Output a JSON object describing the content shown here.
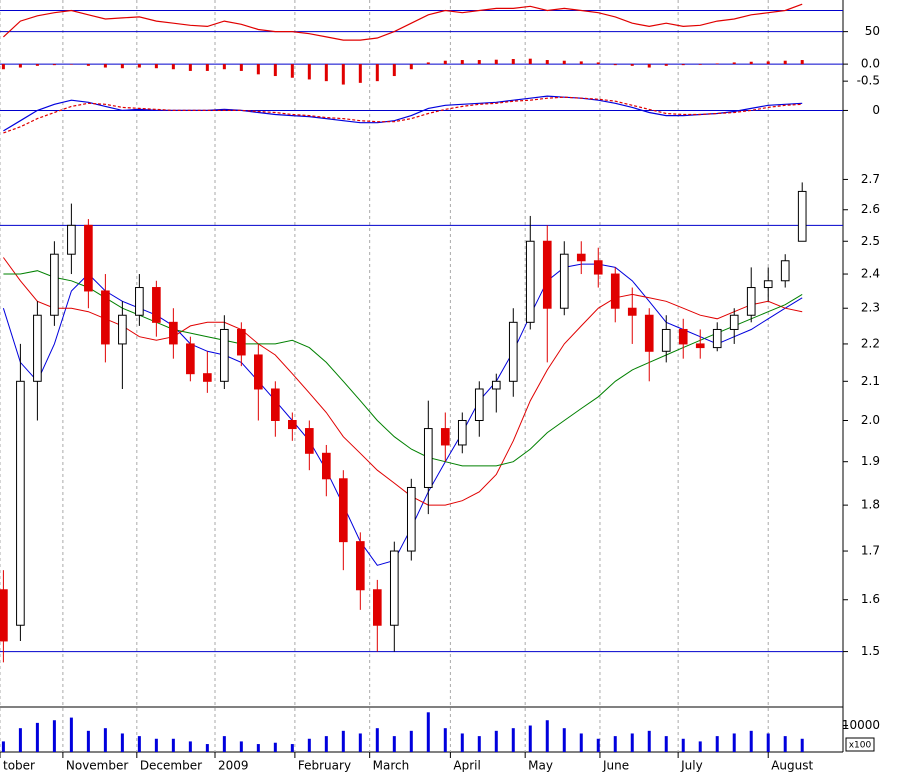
{
  "chart_data": [
    {
      "type": "line",
      "xlim": [
        -0.2,
        49.4
      ],
      "ylim": [
        25,
        80
      ],
      "yticks": [
        50
      ],
      "levels": [
        70,
        50
      ],
      "series": [
        {
          "color": "#e00000",
          "values": [
            45,
            60,
            65,
            68,
            70,
            66,
            62,
            63,
            64,
            60,
            58,
            56,
            55,
            60,
            57,
            52,
            50,
            50,
            48,
            45,
            42,
            42,
            44,
            50,
            58,
            66,
            70,
            68,
            70,
            72,
            72,
            74,
            70,
            72,
            70,
            68,
            64,
            58,
            55,
            58,
            55,
            56,
            60,
            62,
            66,
            68,
            70,
            76
          ]
        }
      ]
    },
    {
      "type": "bar",
      "xlim": [
        -0.2,
        49.4
      ],
      "ylim": [
        -0.76,
        0.18
      ],
      "yticks": [
        {
          "value": 0,
          "label": "0.0"
        },
        -0.5
      ],
      "levels": [
        0
      ],
      "color": "#e00000",
      "values": [
        -0.15,
        -0.1,
        -0.05,
        -0.03,
        0.0,
        -0.05,
        -0.1,
        -0.12,
        -0.1,
        -0.12,
        -0.15,
        -0.2,
        -0.2,
        -0.15,
        -0.2,
        -0.3,
        -0.35,
        -0.4,
        -0.45,
        -0.5,
        -0.6,
        -0.55,
        -0.5,
        -0.35,
        -0.15,
        0.05,
        0.1,
        0.12,
        0.12,
        0.13,
        0.15,
        0.16,
        0.12,
        0.1,
        0.08,
        0.05,
        -0.03,
        -0.05,
        -0.1,
        -0.05,
        -0.03,
        -0.02,
        0.02,
        0.05,
        0.07,
        0.08,
        0.1,
        0.12
      ]
    },
    {
      "type": "line",
      "xlim": [
        -0.2,
        49.4
      ],
      "ylim": [
        -0.25,
        0.2
      ],
      "yticks": [
        0
      ],
      "levels": [
        0
      ],
      "series": [
        {
          "color": "#0000dd",
          "values": [
            -0.2,
            -0.1,
            0.0,
            0.06,
            0.1,
            0.08,
            0.04,
            0.0,
            0.01,
            0.0,
            0.0,
            0.0,
            0.0,
            0.01,
            0.0,
            -0.02,
            -0.04,
            -0.05,
            -0.06,
            -0.08,
            -0.1,
            -0.12,
            -0.12,
            -0.1,
            -0.05,
            0.02,
            0.05,
            0.06,
            0.07,
            0.08,
            0.1,
            0.12,
            0.14,
            0.13,
            0.12,
            0.1,
            0.07,
            0.03,
            -0.02,
            -0.05,
            -0.05,
            -0.04,
            -0.03,
            -0.01,
            0.02,
            0.05,
            0.06,
            0.07
          ]
        },
        {
          "color": "#e00000",
          "dashed": true,
          "values": [
            -0.22,
            -0.16,
            -0.08,
            -0.02,
            0.04,
            0.07,
            0.06,
            0.03,
            0.02,
            0.01,
            0.0,
            0.0,
            0.0,
            0.0,
            0.0,
            -0.01,
            -0.02,
            -0.04,
            -0.05,
            -0.07,
            -0.08,
            -0.1,
            -0.11,
            -0.11,
            -0.08,
            -0.03,
            0.01,
            0.04,
            0.06,
            0.07,
            0.09,
            0.1,
            0.12,
            0.13,
            0.12,
            0.11,
            0.09,
            0.05,
            0.01,
            -0.03,
            -0.04,
            -0.04,
            -0.03,
            -0.02,
            0.0,
            0.03,
            0.05,
            0.06
          ]
        }
      ]
    },
    {
      "type": "candlestick",
      "xlim": [
        -0.2,
        49.4
      ],
      "ylim": [
        1.4,
        2.85
      ],
      "log_scale": true,
      "up_color": "#000000",
      "down_color": "#e00000",
      "yticks": [
        1.5,
        1.6,
        1.7,
        1.8,
        1.9,
        {
          "value": 2,
          "label": "2.0"
        },
        2.1,
        2.2,
        2.3,
        2.4,
        2.5,
        2.6,
        2.7
      ],
      "levels": [
        2.55,
        1.5
      ],
      "open": [
        1.62,
        1.55,
        2.1,
        2.28,
        2.46,
        2.55,
        2.35,
        2.2,
        2.28,
        2.36,
        2.26,
        2.2,
        2.12,
        2.1,
        2.24,
        2.17,
        2.08,
        2.0,
        1.98,
        1.92,
        1.86,
        1.72,
        1.62,
        1.55,
        1.7,
        1.84,
        1.98,
        1.94,
        2.0,
        2.08,
        2.1,
        2.26,
        2.5,
        2.3,
        2.46,
        2.44,
        2.4,
        2.3,
        2.28,
        2.18,
        2.24,
        2.2,
        2.19,
        2.24,
        2.28,
        2.36,
        2.38,
        2.5
      ],
      "high": [
        1.66,
        2.2,
        2.32,
        2.5,
        2.62,
        2.57,
        2.4,
        2.32,
        2.4,
        2.38,
        2.3,
        2.22,
        2.18,
        2.28,
        2.26,
        2.2,
        2.1,
        2.02,
        2.0,
        1.94,
        1.88,
        1.74,
        1.64,
        1.72,
        1.86,
        2.05,
        2.02,
        2.02,
        2.1,
        2.12,
        2.3,
        2.58,
        2.55,
        2.5,
        2.5,
        2.48,
        2.42,
        2.36,
        2.3,
        2.28,
        2.27,
        2.24,
        2.26,
        2.3,
        2.42,
        2.42,
        2.46,
        2.69
      ],
      "low": [
        1.48,
        1.52,
        2.0,
        2.25,
        2.4,
        2.3,
        2.15,
        2.08,
        2.25,
        2.22,
        2.16,
        2.1,
        2.07,
        2.08,
        2.14,
        2.0,
        1.96,
        1.95,
        1.88,
        1.82,
        1.66,
        1.58,
        1.5,
        1.5,
        1.68,
        1.78,
        1.9,
        1.92,
        1.96,
        2.02,
        2.06,
        2.24,
        2.15,
        2.28,
        2.4,
        2.36,
        2.26,
        2.2,
        2.1,
        2.15,
        2.16,
        2.16,
        2.18,
        2.2,
        2.26,
        2.32,
        2.36,
        2.5
      ],
      "close": [
        1.52,
        2.1,
        2.28,
        2.46,
        2.55,
        2.35,
        2.2,
        2.28,
        2.36,
        2.26,
        2.2,
        2.12,
        2.1,
        2.24,
        2.17,
        2.08,
        2.0,
        1.98,
        1.92,
        1.86,
        1.72,
        1.62,
        1.55,
        1.7,
        1.84,
        1.98,
        1.94,
        2.0,
        2.08,
        2.1,
        2.26,
        2.5,
        2.3,
        2.46,
        2.44,
        2.4,
        2.3,
        2.28,
        2.18,
        2.24,
        2.2,
        2.19,
        2.24,
        2.28,
        2.36,
        2.38,
        2.44,
        2.66
      ],
      "lines": [
        {
          "color": "#0000dd",
          "values": [
            2.3,
            2.15,
            2.1,
            2.2,
            2.35,
            2.4,
            2.35,
            2.32,
            2.3,
            2.28,
            2.25,
            2.2,
            2.18,
            2.17,
            2.15,
            2.1,
            2.05,
            2.0,
            1.95,
            1.88,
            1.8,
            1.72,
            1.67,
            1.68,
            1.75,
            1.83,
            1.9,
            1.97,
            2.05,
            2.1,
            2.18,
            2.28,
            2.38,
            2.42,
            2.43,
            2.43,
            2.42,
            2.38,
            2.32,
            2.26,
            2.24,
            2.22,
            2.2,
            2.22,
            2.24,
            2.27,
            2.3,
            2.33
          ]
        },
        {
          "color": "#e00000",
          "values": [
            2.45,
            2.38,
            2.32,
            2.3,
            2.3,
            2.29,
            2.27,
            2.25,
            2.22,
            2.21,
            2.22,
            2.25,
            2.26,
            2.26,
            2.24,
            2.2,
            2.17,
            2.12,
            2.07,
            2.02,
            1.96,
            1.92,
            1.88,
            1.85,
            1.82,
            1.8,
            1.8,
            1.81,
            1.83,
            1.87,
            1.95,
            2.05,
            2.13,
            2.2,
            2.25,
            2.3,
            2.33,
            2.34,
            2.33,
            2.32,
            2.3,
            2.28,
            2.27,
            2.29,
            2.31,
            2.32,
            2.3,
            2.29
          ]
        },
        {
          "color": "#008000",
          "values": [
            2.4,
            2.4,
            2.41,
            2.39,
            2.38,
            2.36,
            2.33,
            2.3,
            2.28,
            2.26,
            2.24,
            2.23,
            2.22,
            2.21,
            2.2,
            2.2,
            2.2,
            2.21,
            2.19,
            2.15,
            2.1,
            2.05,
            2.0,
            1.96,
            1.93,
            1.91,
            1.9,
            1.89,
            1.89,
            1.89,
            1.9,
            1.93,
            1.97,
            2.0,
            2.03,
            2.06,
            2.1,
            2.13,
            2.15,
            2.17,
            2.19,
            2.21,
            2.23,
            2.25,
            2.27,
            2.29,
            2.31,
            2.34
          ]
        }
      ]
    },
    {
      "type": "bar",
      "xlim": [
        -0.2,
        49.4
      ],
      "ylim": [
        0,
        17000
      ],
      "yticks": [
        10000
      ],
      "color": "#0000dd",
      "unit_label": "x100",
      "values": [
        4000,
        9000,
        11000,
        12000,
        13000,
        8000,
        9000,
        7000,
        6000,
        5000,
        5000,
        4000,
        3000,
        6000,
        4000,
        3000,
        3500,
        3000,
        5000,
        6000,
        8000,
        7000,
        9000,
        6000,
        8000,
        15000,
        9000,
        7000,
        6000,
        8000,
        9000,
        10000,
        12000,
        9000,
        7000,
        5000,
        6000,
        7000,
        8000,
        6000,
        5000,
        4000,
        6000,
        7000,
        8000,
        7000,
        6000,
        5000
      ],
      "xticks": [
        {
          "value": -0.2,
          "label": "tober"
        },
        {
          "value": 3.5,
          "label": "November"
        },
        {
          "value": 7.85,
          "label": "December"
        },
        {
          "value": 12.45,
          "label": "2009"
        },
        {
          "value": 17.15,
          "label": "February"
        },
        {
          "value": 21.55,
          "label": "March"
        },
        {
          "value": 26.3,
          "label": "April"
        },
        {
          "value": 30.7,
          "label": "May"
        },
        {
          "value": 35.1,
          "label": "June"
        },
        {
          "value": 39.7,
          "label": "July"
        },
        {
          "value": 45.0,
          "label": "August"
        }
      ]
    }
  ]
}
